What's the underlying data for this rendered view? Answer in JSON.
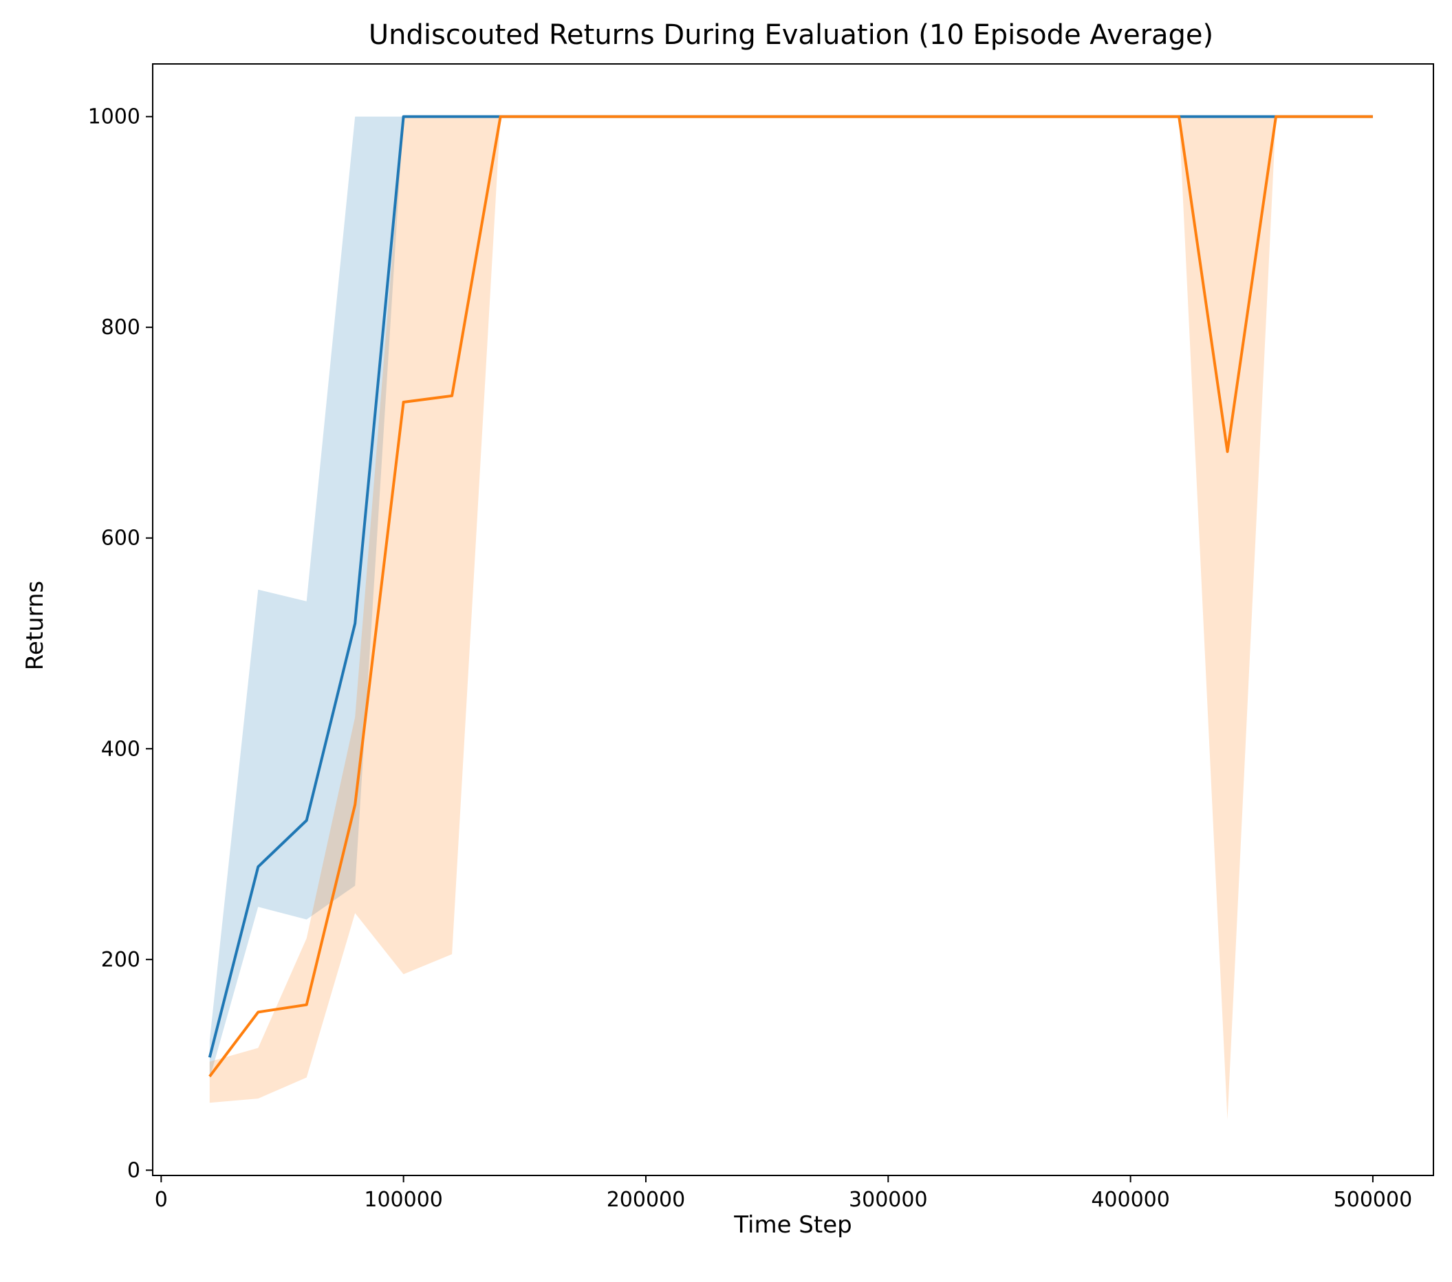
{
  "chart_data": {
    "type": "line",
    "title": "Undiscouted Returns During Evaluation (10 Episode Average)",
    "xlabel": "Time Step",
    "ylabel": "Returns",
    "xlim": [
      -3500,
      525000
    ],
    "ylim": [
      -5,
      1050
    ],
    "xticks": [
      0,
      100000,
      200000,
      300000,
      400000,
      500000
    ],
    "xtick_labels": [
      "0",
      "100000",
      "200000",
      "300000",
      "400000",
      "500000"
    ],
    "yticks": [
      0,
      200,
      400,
      600,
      800,
      1000
    ],
    "ytick_labels": [
      "0",
      "200",
      "400",
      "600",
      "800",
      "1000"
    ],
    "grid": false,
    "legend": null,
    "x": [
      20000,
      40000,
      60000,
      80000,
      100000,
      120000,
      140000,
      160000,
      180000,
      200000,
      220000,
      240000,
      260000,
      280000,
      300000,
      320000,
      340000,
      360000,
      380000,
      400000,
      420000,
      440000,
      460000,
      480000,
      500000
    ],
    "series": [
      {
        "color": "#1f77b4",
        "fill_color": "#1f77b4",
        "fill_opacity": 0.2,
        "values": [
          107,
          288,
          332,
          519,
          1000,
          1000,
          1000,
          1000,
          1000,
          1000,
          1000,
          1000,
          1000,
          1000,
          1000,
          1000,
          1000,
          1000,
          1000,
          1000,
          1000,
          1000,
          1000,
          1000,
          1000
        ],
        "lower": [
          87,
          250,
          238,
          270,
          1000,
          1000,
          1000,
          1000,
          1000,
          1000,
          1000,
          1000,
          1000,
          1000,
          1000,
          1000,
          1000,
          1000,
          1000,
          1000,
          1000,
          1000,
          1000,
          1000,
          1000
        ],
        "upper": [
          123,
          551,
          540,
          1000,
          1000,
          1000,
          1000,
          1000,
          1000,
          1000,
          1000,
          1000,
          1000,
          1000,
          1000,
          1000,
          1000,
          1000,
          1000,
          1000,
          1000,
          1000,
          1000,
          1000,
          1000
        ]
      },
      {
        "color": "#ff7f0e",
        "fill_color": "#ff7f0e",
        "fill_opacity": 0.2,
        "values": [
          89,
          150,
          157,
          347,
          729,
          735,
          1000,
          1000,
          1000,
          1000,
          1000,
          1000,
          1000,
          1000,
          1000,
          1000,
          1000,
          1000,
          1000,
          1000,
          1000,
          682,
          1000,
          1000,
          1000
        ],
        "lower": [
          64,
          68,
          88,
          244,
          186,
          205,
          1000,
          1000,
          1000,
          1000,
          1000,
          1000,
          1000,
          1000,
          1000,
          1000,
          1000,
          1000,
          1000,
          1000,
          1000,
          48,
          1000,
          1000,
          1000
        ],
        "upper": [
          103,
          116,
          220,
          430,
          1000,
          1000,
          1000,
          1000,
          1000,
          1000,
          1000,
          1000,
          1000,
          1000,
          1000,
          1000,
          1000,
          1000,
          1000,
          1000,
          1000,
          1000,
          1000,
          1000,
          1000
        ]
      }
    ]
  }
}
